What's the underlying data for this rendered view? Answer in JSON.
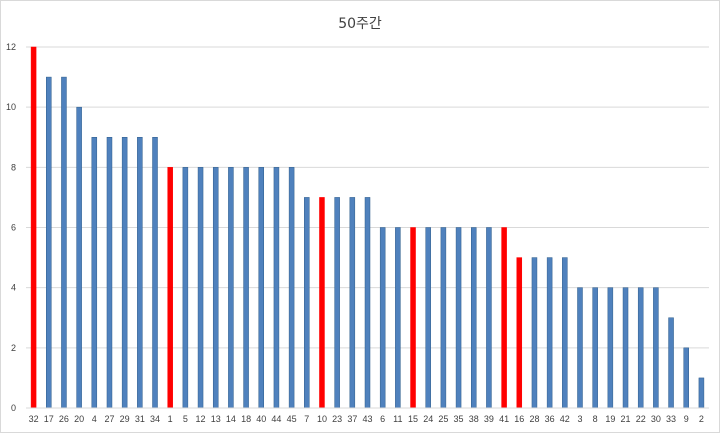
{
  "chart_data": {
    "type": "bar",
    "title": "50주간",
    "xlabel": "",
    "ylabel": "",
    "ylim": [
      0,
      12
    ],
    "yticks": [
      0,
      2,
      4,
      6,
      8,
      10,
      12
    ],
    "grid": true,
    "legend": "none",
    "categories": [
      "32",
      "17",
      "26",
      "20",
      "4",
      "27",
      "29",
      "31",
      "34",
      "1",
      "5",
      "12",
      "13",
      "14",
      "18",
      "40",
      "44",
      "45",
      "7",
      "10",
      "23",
      "37",
      "43",
      "6",
      "11",
      "15",
      "24",
      "25",
      "35",
      "38",
      "39",
      "41",
      "16",
      "28",
      "36",
      "42",
      "3",
      "8",
      "19",
      "21",
      "22",
      "30",
      "33",
      "9",
      "2"
    ],
    "values": [
      12,
      11,
      11,
      10,
      9,
      9,
      9,
      9,
      9,
      8,
      8,
      8,
      8,
      8,
      8,
      8,
      8,
      8,
      7,
      7,
      7,
      7,
      7,
      6,
      6,
      6,
      6,
      6,
      6,
      6,
      6,
      6,
      5,
      5,
      5,
      5,
      4,
      4,
      4,
      4,
      4,
      4,
      3,
      2,
      1
    ],
    "highlighted": [
      "32",
      "1",
      "10",
      "15",
      "41",
      "16"
    ],
    "colors": {
      "bar": "#4f81bd",
      "bar_edge": "#2e5c8a",
      "highlight": "#ff0000",
      "grid": "#d9d9d9",
      "text": "#404040"
    }
  }
}
